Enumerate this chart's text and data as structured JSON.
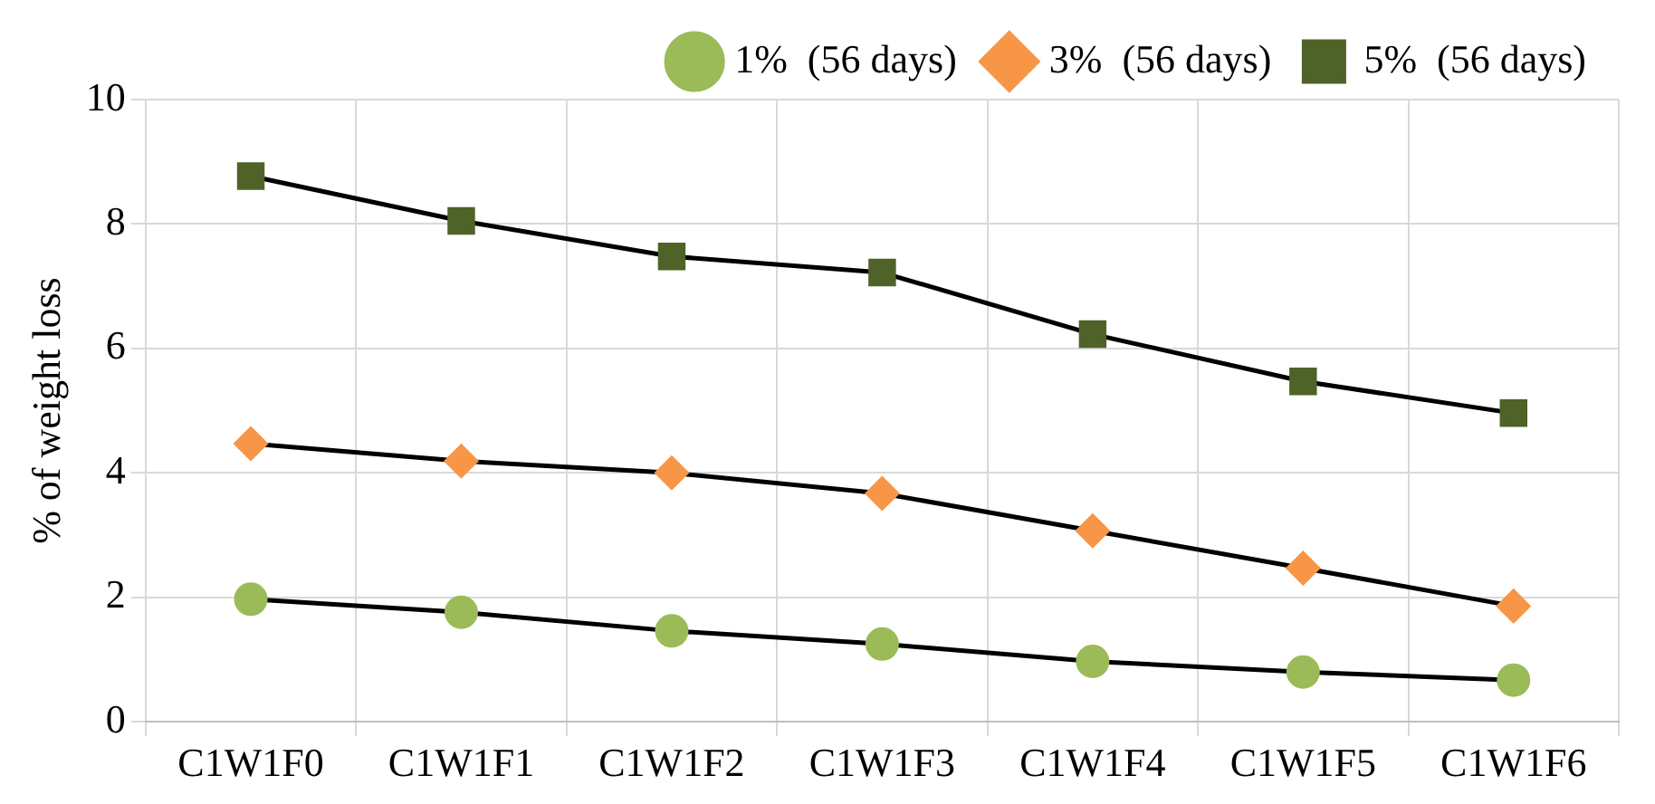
{
  "chart_data": {
    "type": "line",
    "ylabel": "% of weight loss",
    "categories": [
      "C1W1F0",
      "C1W1F1",
      "C1W1F2",
      "C1W1F3",
      "C1W1F4",
      "C1W1F5",
      "C1W1F6"
    ],
    "series": [
      {
        "name": "1%  (56 days)",
        "color": "#9bbb59",
        "marker": "circle",
        "values": [
          1.97,
          1.76,
          1.46,
          1.25,
          0.97,
          0.8,
          0.67
        ]
      },
      {
        "name": "3%  (56 days)",
        "color": "#f79646",
        "marker": "diamond",
        "values": [
          4.47,
          4.19,
          4.0,
          3.67,
          3.07,
          2.47,
          1.86
        ]
      },
      {
        "name": "5%  (56 days)",
        "color": "#4f6228",
        "marker": "square",
        "values": [
          8.77,
          8.05,
          7.48,
          7.22,
          6.23,
          5.47,
          4.96
        ]
      }
    ],
    "ylim": [
      0,
      10
    ],
    "yticks": [
      0,
      2,
      4,
      6,
      8,
      10
    ],
    "grid": true,
    "legend": "top right"
  }
}
